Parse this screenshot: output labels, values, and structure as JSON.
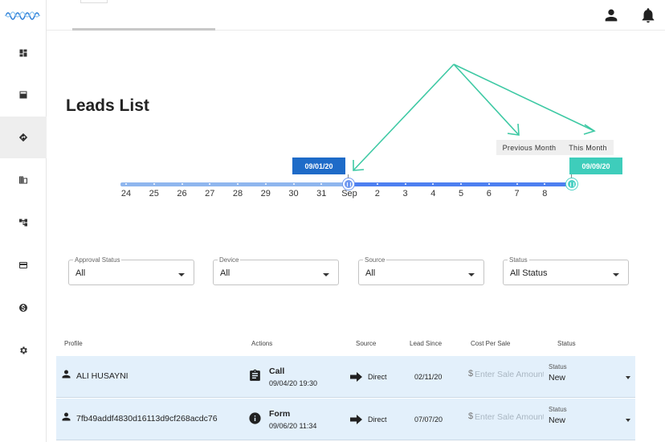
{
  "page": {
    "title": "Leads List"
  },
  "sidebar": {
    "items": [
      {
        "icon": "dashboard-icon",
        "active": false
      },
      {
        "icon": "table-icon",
        "active": false
      },
      {
        "icon": "directions-icon",
        "active": true
      },
      {
        "icon": "business-icon",
        "active": false
      },
      {
        "icon": "hierarchy-icon",
        "active": false
      },
      {
        "icon": "credit-card-icon",
        "active": false
      },
      {
        "icon": "dollar-circle-icon",
        "active": false
      },
      {
        "icon": "gear-icon",
        "active": false
      }
    ]
  },
  "header": {
    "icons": [
      "account-icon",
      "bell-icon"
    ]
  },
  "date_range": {
    "start_label": "09/01/20",
    "end_label": "09/09/20",
    "quick_ranges": [
      "Previous Month",
      "This Month"
    ],
    "ticks": [
      "24",
      "25",
      "26",
      "27",
      "28",
      "29",
      "30",
      "31",
      "Sep",
      "2",
      "3",
      "4",
      "5",
      "6",
      "7",
      "8"
    ],
    "colors": {
      "start": "#1e6bc8",
      "end": "#3ecdbb",
      "range": "#4d7ff0"
    }
  },
  "filters": [
    {
      "label": "Approval Status",
      "value": "All"
    },
    {
      "label": "Device",
      "value": "All"
    },
    {
      "label": "Source",
      "value": "All"
    },
    {
      "label": "Status",
      "value": "All Status"
    }
  ],
  "table": {
    "columns": [
      "Profile",
      "Actions",
      "Source",
      "Lead Since",
      "Cost Per Sale",
      "Status"
    ],
    "cost_placeholder": "Enter Sale Amount",
    "currency_symbol": "$",
    "status_label": "Status",
    "rows": [
      {
        "profile": "ALI HUSAYNI",
        "action_icon": "clipboard-icon",
        "action": "Call",
        "action_time": "09/04/20 19:30",
        "source": "Direct",
        "lead_since": "02/11/20",
        "cost": "",
        "status": "New"
      },
      {
        "profile": "7fb49addf4830d16113d9cf268acdc76",
        "action_icon": "info-icon",
        "action": "Form",
        "action_time": "09/06/20 11:34",
        "source": "Direct",
        "lead_since": "07/07/20",
        "cost": "",
        "status": "New"
      }
    ]
  }
}
